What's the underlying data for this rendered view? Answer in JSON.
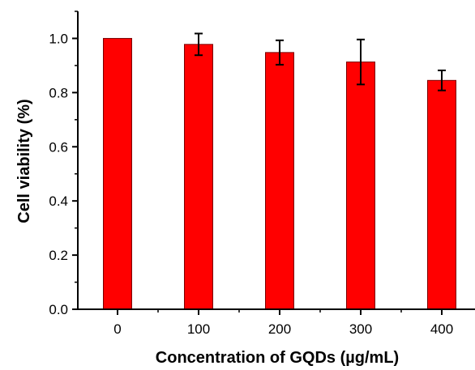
{
  "chart_data": {
    "type": "bar",
    "title": "",
    "xlabel": "Concentration of GQDs (µg/mL)",
    "ylabel": "Cell viability (%)",
    "categories": [
      "0",
      "100",
      "200",
      "300",
      "400"
    ],
    "values": [
      1.0,
      0.978,
      0.948,
      0.913,
      0.845
    ],
    "errors": [
      0.0,
      0.04,
      0.045,
      0.083,
      0.037
    ],
    "ylim": [
      0,
      1.1
    ],
    "yticks": [
      "0.0",
      "0.2",
      "0.4",
      "0.6",
      "0.8",
      "1.0"
    ],
    "grid": false,
    "legend": "none",
    "bar_color": "#ff0000",
    "bar_edge_color": "#7a0000"
  }
}
